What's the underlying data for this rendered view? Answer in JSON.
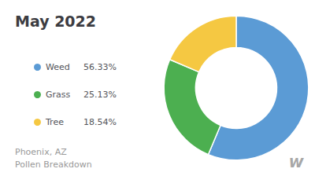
{
  "chart_data": {
    "type": "donut",
    "title": "May 2022",
    "subtitle": "Phoenix, AZ\nPollen Breakdown",
    "categories": [
      "Weed",
      "Grass",
      "Tree"
    ],
    "values": [
      56.33,
      25.13,
      18.54
    ],
    "value_labels": [
      "56.33%",
      "25.13%",
      "18.54%"
    ],
    "colors": [
      "#5b9bd5",
      "#4caf50",
      "#f5c842"
    ],
    "legend": "left",
    "annotations": [
      "w"
    ]
  }
}
